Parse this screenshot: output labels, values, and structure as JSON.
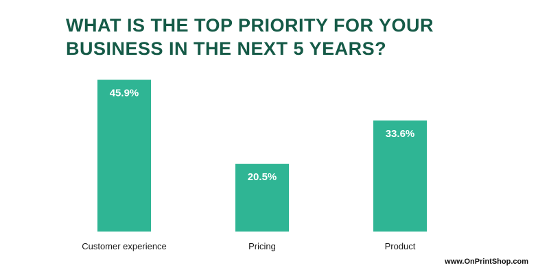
{
  "title_lines": [
    "WHAT IS THE TOP PRIORITY FOR YOUR",
    "BUSINESS IN THE NEXT 5 YEARS?"
  ],
  "watermark": "www.OnPrintShop.com",
  "colors": {
    "bar": "#2fb594",
    "title": "#155a47"
  },
  "chart_data": {
    "type": "bar",
    "title": "WHAT IS THE TOP PRIORITY FOR YOUR BUSINESS IN THE NEXT 5 YEARS?",
    "categories": [
      "Customer experience",
      "Pricing",
      "Product"
    ],
    "values": [
      45.9,
      20.5,
      33.6
    ],
    "value_labels": [
      "45.9%",
      "20.5%",
      "33.6%"
    ],
    "xlabel": "",
    "ylabel": "",
    "ylim": [
      0,
      46
    ],
    "grid": false,
    "legend": "none"
  }
}
